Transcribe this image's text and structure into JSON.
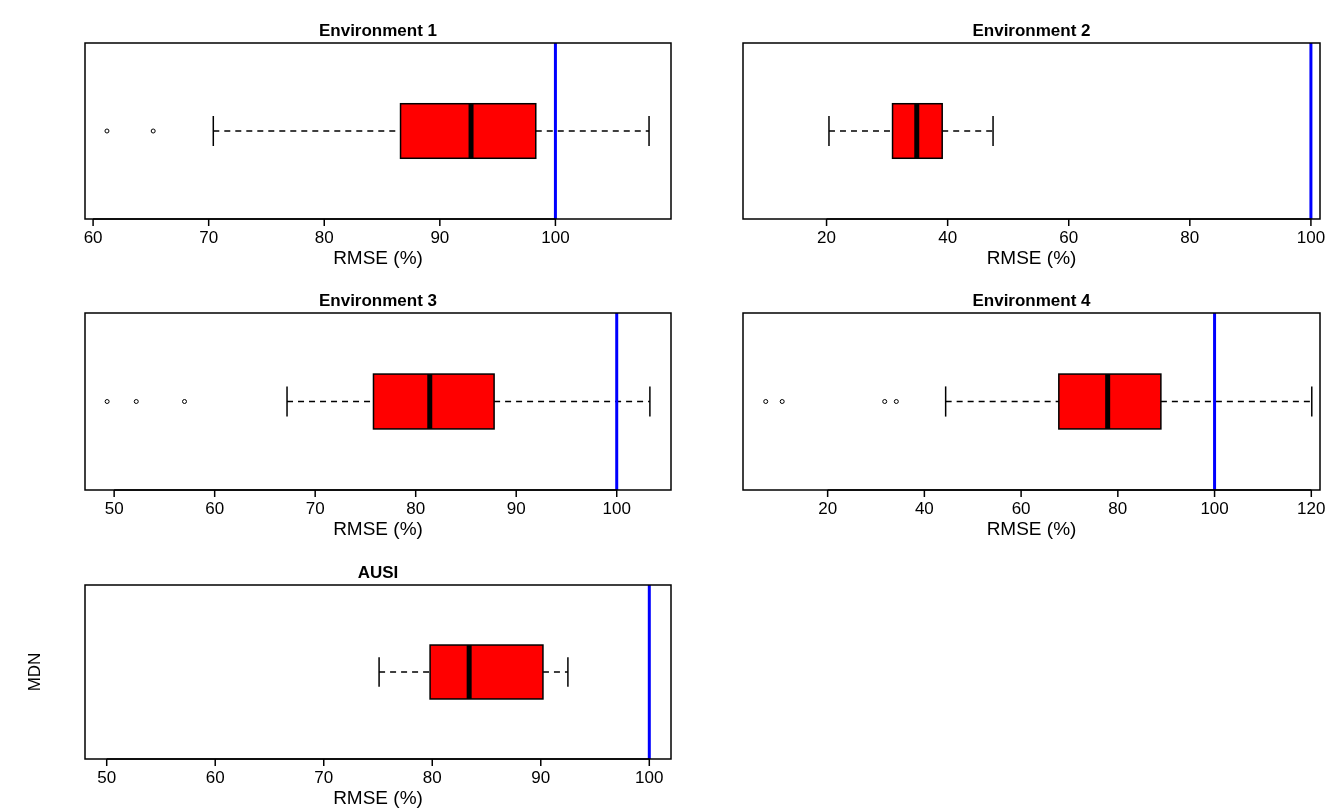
{
  "chart_data": [
    {
      "type": "box",
      "title": "Environment 1",
      "xlabel": "RMSE (%)",
      "orientation": "horizontal",
      "categories": [
        null
      ],
      "color": "#ff0000",
      "boxes": [
        {
          "low": 70.4,
          "q1": 86.6,
          "median": 92.7,
          "q3": 98.3,
          "high": 108.1,
          "outliers": [
            61.2,
            65.2
          ]
        }
      ],
      "xlim": [
        59.3,
        110
      ],
      "xticks": [
        60,
        70,
        80,
        90,
        100
      ],
      "ref_lines": [
        {
          "axis": "x",
          "value": 100,
          "color": "#0000ff"
        }
      ]
    },
    {
      "type": "box",
      "title": "Environment 2",
      "xlabel": "RMSE (%)",
      "orientation": "horizontal",
      "categories": [
        null
      ],
      "color": "#ff0000",
      "boxes": [
        {
          "low": 20.4,
          "q1": 30.9,
          "median": 34.9,
          "q3": 39.1,
          "high": 47.5
        }
      ],
      "xlim": [
        6.2,
        101.5
      ],
      "xticks": [
        20,
        40,
        60,
        80,
        100
      ],
      "ref_lines": [
        {
          "axis": "x",
          "value": 100,
          "color": "#0000ff"
        }
      ]
    },
    {
      "type": "box",
      "title": "Environment 3",
      "xlabel": "RMSE (%)",
      "orientation": "horizontal",
      "categories": [
        null
      ],
      "color": "#ff0000",
      "boxes": [
        {
          "low": 67.2,
          "q1": 75.8,
          "median": 81.4,
          "q3": 87.8,
          "high": 103.3,
          "outliers": [
            49.3,
            52.2,
            57.0
          ]
        }
      ],
      "xlim": [
        47.1,
        105.4
      ],
      "xticks": [
        50,
        60,
        70,
        80,
        90,
        100
      ],
      "ref_lines": [
        {
          "axis": "x",
          "value": 100,
          "color": "#0000ff"
        }
      ]
    },
    {
      "type": "box",
      "title": "Environment 4",
      "xlabel": "RMSE (%)",
      "orientation": "horizontal",
      "categories": [
        null
      ],
      "color": "#ff0000",
      "boxes": [
        {
          "low": 44.4,
          "q1": 67.8,
          "median": 77.9,
          "q3": 88.9,
          "high": 120.1,
          "outliers": [
            7.2,
            10.6,
            31.8,
            34.2
          ]
        }
      ],
      "xlim": [
        2.5,
        121.8
      ],
      "xticks": [
        20,
        40,
        60,
        80,
        100,
        120
      ],
      "ref_lines": [
        {
          "axis": "x",
          "value": 100,
          "color": "#0000ff"
        }
      ]
    },
    {
      "type": "box",
      "title": "AUSI",
      "xlabel": "RMSE (%)",
      "ylabel": "MDN",
      "orientation": "horizontal",
      "categories": [
        null
      ],
      "color": "#ff0000",
      "boxes": [
        {
          "low": 75.1,
          "q1": 79.8,
          "median": 83.4,
          "q3": 90.2,
          "high": 92.5
        }
      ],
      "xlim": [
        48.0,
        102.0
      ],
      "xticks": [
        50,
        60,
        70,
        80,
        90,
        100
      ],
      "ref_lines": [
        {
          "axis": "x",
          "value": 100,
          "color": "#0000ff"
        }
      ]
    }
  ]
}
